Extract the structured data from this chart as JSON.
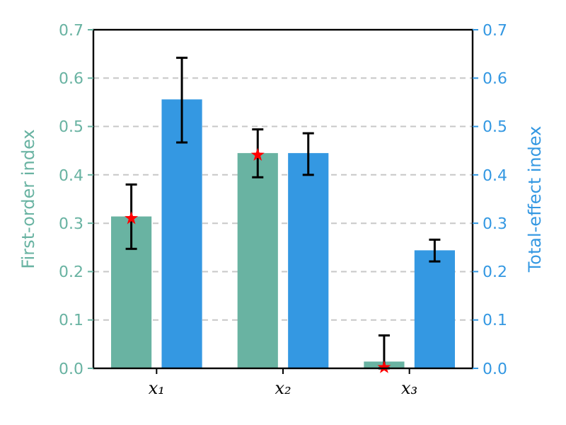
{
  "chart_data": {
    "type": "bar",
    "categories": [
      "x₁",
      "x₂",
      "x₃"
    ],
    "ylabel": "First-order index",
    "y2label": "Total-effect index",
    "ylim": [
      0,
      0.7
    ],
    "yticks": [
      {
        "value": 0,
        "label": "0.0"
      },
      0.1,
      0.2,
      0.3,
      0.4,
      0.5,
      0.6,
      0.7
    ],
    "y2lim": [
      0,
      0.7
    ],
    "y2ticks": [
      {
        "value": 0,
        "label": "0.0"
      },
      0.1,
      0.2,
      0.3,
      0.4,
      0.5,
      0.6,
      0.7
    ],
    "grid": "y",
    "series": [
      {
        "color": "#69b3a2",
        "values": [
          0.314,
          0.445,
          0.014
        ],
        "errors": [
          [
            0.247,
            0.38
          ],
          [
            0.395,
            0.494
          ],
          [
            0,
            0.068
          ]
        ]
      },
      {
        "color": "#3498e2",
        "axis": "y2",
        "values": [
          0.556,
          0.445,
          0.244
        ],
        "errors": [
          [
            0.467,
            0.642
          ],
          [
            0.4,
            0.486
          ],
          [
            0.221,
            0.266
          ]
        ]
      },
      {
        "type": "scatter",
        "color": "#ff0000",
        "marker": "star",
        "x": [
          "x₁",
          "x₂",
          "x₃"
        ],
        "values": [
          0.31,
          0.441,
          0.002
        ]
      }
    ]
  }
}
